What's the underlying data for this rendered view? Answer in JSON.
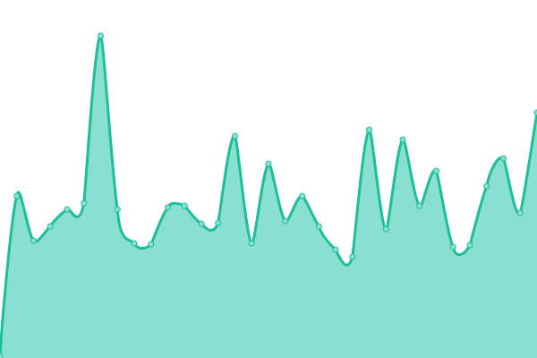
{
  "chart_data": {
    "type": "area",
    "title": "",
    "xlabel": "",
    "ylabel": "",
    "grid": false,
    "axes_visible": false,
    "ylim": [
      0,
      400
    ],
    "x": [
      0,
      1,
      2,
      3,
      4,
      5,
      6,
      7,
      8,
      9,
      10,
      11,
      12,
      13,
      14,
      15,
      16,
      17,
      18,
      19,
      20,
      21,
      22,
      23,
      24,
      25,
      26,
      27,
      28,
      29,
      30,
      31,
      32
    ],
    "values": [
      2,
      181,
      131,
      147,
      166,
      173,
      360,
      166,
      128,
      127,
      168,
      170,
      150,
      151,
      248,
      128,
      217,
      153,
      181,
      147,
      121,
      113,
      255,
      144,
      244,
      170,
      209,
      124,
      126,
      192,
      223,
      162,
      274
    ],
    "colors": {
      "line": "#1dbf98",
      "fill": "#8ae0d0",
      "marker_fill": "#8ae0d0",
      "marker_stroke": "#1dbf98"
    },
    "curve": "smooth",
    "markers": true
  }
}
